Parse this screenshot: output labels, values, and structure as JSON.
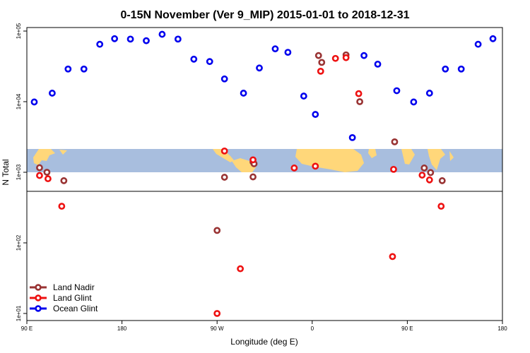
{
  "chart_data": {
    "type": "scatter",
    "title": "0-15N November (Ver 9_MIP)   2015-01-01 to 2018-12-31",
    "xlabel": "Longitude (deg E)",
    "ylabel": "N Total",
    "yscale": "log",
    "xlim": [
      90,
      540
    ],
    "ylim_log10": [
      0.9,
      5.05
    ],
    "x_ticks": [
      {
        "value": 90,
        "label": "90 E"
      },
      {
        "value": 180,
        "label": "180"
      },
      {
        "value": 270,
        "label": "90 W"
      },
      {
        "value": 360,
        "label": "0"
      },
      {
        "value": 450,
        "label": "90 E"
      },
      {
        "value": 540,
        "label": "180"
      }
    ],
    "y_ticks": [
      {
        "log10": 1,
        "label": "1e+01"
      },
      {
        "log10": 2,
        "label": "1e+02"
      },
      {
        "log10": 3,
        "label": "1e+03"
      },
      {
        "log10": 4,
        "label": "1e+04"
      },
      {
        "log10": 5,
        "label": "1e+05"
      }
    ],
    "map_band": {
      "lat_range": "0-15N",
      "description": "world map strip"
    },
    "legend_position": "bottom-left",
    "series": [
      {
        "name": "Land Nadir",
        "color": "#993333",
        "points": [
          {
            "x": 102,
            "y": 1160
          },
          {
            "x": 109,
            "y": 1000
          },
          {
            "x": 125,
            "y": 760
          },
          {
            "x": 277,
            "y": 850
          },
          {
            "x": 304,
            "y": 1400
          },
          {
            "x": 305,
            "y": 1320
          },
          {
            "x": 304,
            "y": 860
          },
          {
            "x": 270,
            "y": 150
          },
          {
            "x": 369,
            "y": 36000
          },
          {
            "x": 366,
            "y": 45000
          },
          {
            "x": 392,
            "y": 46000
          },
          {
            "x": 405,
            "y": 10000
          },
          {
            "x": 438,
            "y": 2700
          },
          {
            "x": 466,
            "y": 1150
          },
          {
            "x": 472,
            "y": 990
          },
          {
            "x": 483,
            "y": 760
          }
        ]
      },
      {
        "name": "Land Glint",
        "color": "#ee1111",
        "points": [
          {
            "x": 102,
            "y": 900
          },
          {
            "x": 110,
            "y": 810
          },
          {
            "x": 123,
            "y": 330
          },
          {
            "x": 277,
            "y": 2000
          },
          {
            "x": 304,
            "y": 1500
          },
          {
            "x": 292,
            "y": 43
          },
          {
            "x": 270,
            "y": 10
          },
          {
            "x": 343,
            "y": 1150
          },
          {
            "x": 363,
            "y": 1220
          },
          {
            "x": 368,
            "y": 27000
          },
          {
            "x": 382,
            "y": 41000
          },
          {
            "x": 392,
            "y": 42000
          },
          {
            "x": 404,
            "y": 13000
          },
          {
            "x": 436,
            "y": 64
          },
          {
            "x": 437,
            "y": 1100
          },
          {
            "x": 464,
            "y": 910
          },
          {
            "x": 471,
            "y": 780
          },
          {
            "x": 482,
            "y": 330
          }
        ]
      },
      {
        "name": "Ocean Glint",
        "color": "#0000ee",
        "points": [
          {
            "x": 97,
            "y": 9900
          },
          {
            "x": 114,
            "y": 13200
          },
          {
            "x": 129,
            "y": 29000
          },
          {
            "x": 144,
            "y": 29000
          },
          {
            "x": 159,
            "y": 65000
          },
          {
            "x": 173,
            "y": 78000
          },
          {
            "x": 188,
            "y": 77000
          },
          {
            "x": 203,
            "y": 73000
          },
          {
            "x": 218,
            "y": 90000
          },
          {
            "x": 233,
            "y": 77000
          },
          {
            "x": 248,
            "y": 40000
          },
          {
            "x": 263,
            "y": 37000
          },
          {
            "x": 277,
            "y": 21000
          },
          {
            "x": 295,
            "y": 13200
          },
          {
            "x": 310,
            "y": 30000
          },
          {
            "x": 325,
            "y": 56000
          },
          {
            "x": 337,
            "y": 50000
          },
          {
            "x": 352,
            "y": 12000
          },
          {
            "x": 363,
            "y": 6600
          },
          {
            "x": 398,
            "y": 3100
          },
          {
            "x": 409,
            "y": 45000
          },
          {
            "x": 422,
            "y": 34000
          },
          {
            "x": 440,
            "y": 14300
          },
          {
            "x": 456,
            "y": 9900
          },
          {
            "x": 471,
            "y": 13200
          },
          {
            "x": 486,
            "y": 29000
          },
          {
            "x": 501,
            "y": 29000
          },
          {
            "x": 517,
            "y": 65000
          },
          {
            "x": 531,
            "y": 78000
          }
        ]
      }
    ]
  }
}
